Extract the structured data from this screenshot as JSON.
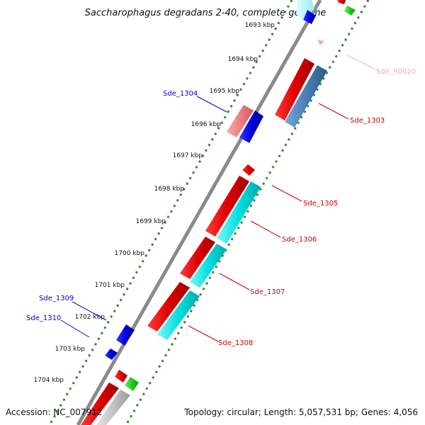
{
  "title": "Saccharophagus degradans 2-40, complete genome",
  "footer": {
    "accession": "Accession: NC_007912",
    "topology": "Topology: circular; Length: 5,057,531 bp; Genes: 4,056"
  },
  "scale": {
    "ticks": [
      {
        "label": "1693 kbp",
        "kbp": 1693
      },
      {
        "label": "1694 kbp",
        "kbp": 1694
      },
      {
        "label": "1695 kbp",
        "kbp": 1695
      },
      {
        "label": "1696 kbp",
        "kbp": 1696
      },
      {
        "label": "1697 kbp",
        "kbp": 1697
      },
      {
        "label": "1698 kbp",
        "kbp": 1698
      },
      {
        "label": "1699 kbp",
        "kbp": 1699
      },
      {
        "label": "1700 kbp",
        "kbp": 1700
      },
      {
        "label": "1701 kbp",
        "kbp": 1701
      },
      {
        "label": "1702 kbp",
        "kbp": 1702
      },
      {
        "label": "1703 kbp",
        "kbp": 1703
      },
      {
        "label": "1704 kbp",
        "kbp": 1704
      }
    ]
  },
  "genes": [
    {
      "label": "Sde_R0020",
      "color": "#f4a6c8"
    },
    {
      "label": "Sde_1303",
      "color": "#cc0000"
    },
    {
      "label": "Sde_1304",
      "color": "#0000cc"
    },
    {
      "label": "Sde_1305",
      "color": "#cc0000"
    },
    {
      "label": "Sde_1306",
      "color": "#cc0000"
    },
    {
      "label": "Sde_1307",
      "color": "#cc0000"
    },
    {
      "label": "Sde_1308",
      "color": "#cc0000"
    },
    {
      "label": "Sde_1309",
      "color": "#0000cc"
    },
    {
      "label": "Sde_1310",
      "color": "#0000cc"
    }
  ],
  "colors": {
    "backbone": "#8a8a8a",
    "ruler": "#2e8b2e",
    "forward_cds": "#ff0000",
    "reverse_cds": "#0000ff",
    "pink_feature": "#f08080",
    "cyan_feature": "#00e5e5",
    "steelblue_feature": "#4a7fb5",
    "green_feature": "#33cc33",
    "gray_feature": "#bdbdbd"
  }
}
